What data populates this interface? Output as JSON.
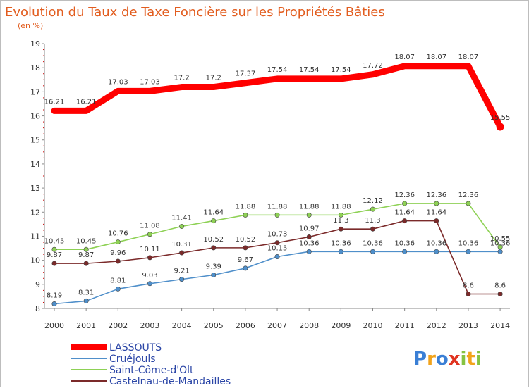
{
  "title": "Evolution du Taux de Taxe Foncière sur les Propriétés Bâties",
  "subtitle": "(en %)",
  "brand": {
    "letters": [
      "P",
      "r",
      "o",
      "x",
      "i",
      "t",
      "i"
    ],
    "colors": [
      "#3a7fd5",
      "#f2a31b",
      "#3a7fd5",
      "#e0331f",
      "#86c341",
      "#f2a31b",
      "#86c341"
    ]
  },
  "chart_data": {
    "type": "line",
    "title": "Evolution du Taux de Taxe Foncière sur les Propriétés Bâties",
    "ylabel": "(en %)",
    "xlabel": "",
    "x": [
      "2000",
      "2001",
      "2002",
      "2003",
      "2004",
      "2005",
      "2006",
      "2007",
      "2008",
      "2009",
      "2010",
      "2011",
      "2012",
      "2013",
      "2014"
    ],
    "ylim": [
      8,
      19
    ],
    "yticks": [
      "8",
      "9",
      "10",
      "11",
      "12",
      "13",
      "14",
      "15",
      "16",
      "17",
      "18",
      "19"
    ],
    "grid": false,
    "legend_position": "bottom-left",
    "series": [
      {
        "name": "LASSOUTS",
        "color": "#ff0000",
        "thick": true,
        "values": [
          16.21,
          16.21,
          17.03,
          17.03,
          17.2,
          17.2,
          17.37,
          17.54,
          17.54,
          17.54,
          17.72,
          18.07,
          18.07,
          18.07,
          15.55
        ],
        "labels": [
          "16.21",
          "16.21",
          "17.03",
          "17.03",
          "17.2",
          "17.2",
          "17.37",
          "17.54",
          "17.54",
          "17.54",
          "17.72",
          "18.07",
          "18.07",
          "18.07",
          "15.55"
        ]
      },
      {
        "name": "Cruéjouls",
        "color": "#4f8fca",
        "thick": false,
        "values": [
          8.19,
          8.31,
          8.81,
          9.03,
          9.21,
          9.39,
          9.67,
          10.15,
          10.36,
          10.36,
          10.36,
          10.36,
          10.36,
          10.36,
          10.36
        ],
        "labels": [
          "8.19",
          "8.31",
          "8.81",
          "9.03",
          "9.21",
          "9.39",
          "9.67",
          "10.15",
          "10.36",
          "10.36",
          "10.36",
          "10.36",
          "10.36",
          "10.36",
          "10.36"
        ]
      },
      {
        "name": "Saint-Côme-d'Olt",
        "color": "#8ed155",
        "thick": false,
        "values": [
          10.45,
          10.45,
          10.76,
          11.08,
          11.41,
          11.64,
          11.88,
          11.88,
          11.88,
          11.88,
          12.12,
          12.36,
          12.36,
          12.36,
          10.55
        ],
        "labels": [
          "10.45",
          "10.45",
          "10.76",
          "11.08",
          "11.41",
          "11.64",
          "11.88",
          "11.88",
          "11.88",
          "11.88",
          "12.12",
          "12.36",
          "12.36",
          "12.36",
          "10.55"
        ]
      },
      {
        "name": "Castelnau-de-Mandailles",
        "color": "#7b2a2a",
        "thick": false,
        "values": [
          9.87,
          9.87,
          9.96,
          10.11,
          10.31,
          10.52,
          10.52,
          10.73,
          10.97,
          11.3,
          11.3,
          11.64,
          11.64,
          8.6,
          8.6
        ],
        "labels": [
          "9.87",
          "9.87",
          "9.96",
          "10.11",
          "10.31",
          "10.52",
          "10.52",
          "10.73",
          "10.97",
          "11.3",
          "11.3",
          "11.64",
          "11.64",
          "8.6",
          "8.6"
        ]
      }
    ]
  }
}
